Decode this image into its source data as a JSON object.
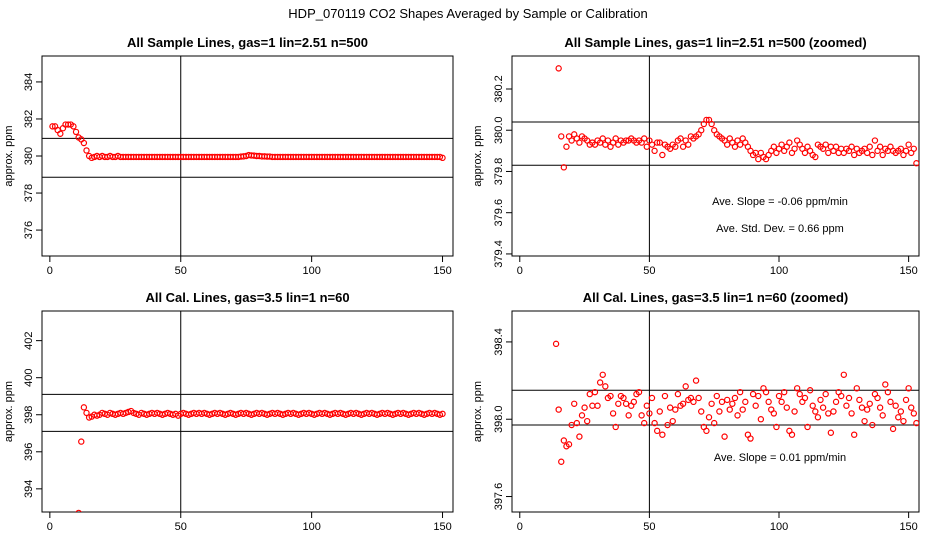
{
  "page_title": "HDP_070119  CO2 Shapes Averaged by Sample or Calibration",
  "chart_data": [
    {
      "type": "scatter",
      "title": "All Sample Lines, gas=1 lin=2.51 n=500",
      "xlabel": "",
      "ylabel": "approx. ppm",
      "xlim": [
        -3,
        154
      ],
      "ylim": [
        374.6,
        385.4
      ],
      "x_ticks": [
        0,
        50,
        100,
        150
      ],
      "x_tick_labels": [
        "0",
        "50",
        "100",
        "150"
      ],
      "y_ticks": [
        376,
        378,
        380,
        382,
        384
      ],
      "y_tick_labels": [
        "376",
        "378",
        "380",
        "382",
        "384"
      ],
      "vline": [
        50
      ],
      "hlines": [
        378.85,
        380.95
      ],
      "marker_color": "#ff0000",
      "annotations": [],
      "points": {
        "x_start": 1,
        "x_step": 1,
        "y": [
          381.6,
          381.6,
          381.4,
          381.2,
          381.5,
          381.7,
          381.7,
          381.7,
          381.6,
          381.3,
          381.0,
          380.9,
          380.7,
          380.3,
          380.0,
          379.9,
          379.95,
          380.0,
          379.95,
          380.0,
          379.95,
          379.95,
          380.0,
          379.95,
          379.95,
          380.0,
          379.95,
          379.95,
          379.95,
          379.95,
          379.95,
          379.95,
          379.95,
          379.95,
          379.95,
          379.95,
          379.95,
          379.95,
          379.95,
          379.95,
          379.95,
          379.95,
          379.95,
          379.95,
          379.95,
          379.95,
          379.95,
          379.95,
          379.95,
          379.95,
          379.95,
          379.95,
          379.95,
          379.95,
          379.95,
          379.95,
          379.95,
          379.95,
          379.95,
          379.95,
          379.95,
          379.95,
          379.95,
          379.95,
          379.95,
          379.95,
          379.95,
          379.95,
          379.95,
          379.95,
          379.95,
          379.95,
          379.97,
          379.98,
          380.0,
          380.05,
          380.03,
          380.02,
          380.0,
          380.0,
          379.98,
          379.98,
          379.97,
          379.97,
          379.95,
          379.95,
          379.95,
          379.95,
          379.95,
          379.95,
          379.95,
          379.95,
          379.95,
          379.95,
          379.95,
          379.95,
          379.95,
          379.95,
          379.95,
          379.95,
          379.95,
          379.95,
          379.95,
          379.95,
          379.95,
          379.95,
          379.95,
          379.95,
          379.95,
          379.95,
          379.95,
          379.95,
          379.95,
          379.95,
          379.95,
          379.95,
          379.95,
          379.95,
          379.95,
          379.95,
          379.95,
          379.95,
          379.95,
          379.95,
          379.95,
          379.95,
          379.95,
          379.95,
          379.95,
          379.95,
          379.95,
          379.95,
          379.95,
          379.95,
          379.95,
          379.95,
          379.95,
          379.95,
          379.95,
          379.95,
          379.95,
          379.95,
          379.95,
          379.95,
          379.95,
          379.95,
          379.95,
          379.95,
          379.95,
          379.9
        ]
      }
    },
    {
      "type": "scatter",
      "title": "All Sample Lines, gas=1 lin=2.51 n=500 (zoomed)",
      "xlabel": "",
      "ylabel": "approx. ppm",
      "xlim": [
        -3,
        154
      ],
      "ylim": [
        379.39,
        380.36
      ],
      "x_ticks": [
        0,
        50,
        100,
        150
      ],
      "x_tick_labels": [
        "0",
        "50",
        "100",
        "150"
      ],
      "y_ticks": [
        379.4,
        379.6,
        379.8,
        380.0,
        380.2
      ],
      "y_tick_labels": [
        "379.4",
        "379.6",
        "379.8",
        "380.0",
        "380.2"
      ],
      "vline": [
        50
      ],
      "hlines": [
        379.83,
        380.04
      ],
      "marker_color": "#ff0000",
      "annotations": [
        "Ave. Slope =  -0.06  ppm/min",
        "Ave. Std. Dev. =  0.66  ppm"
      ],
      "points": {
        "x_start": 15,
        "x_step": 1,
        "y": [
          380.3,
          379.97,
          379.82,
          379.92,
          379.97,
          379.95,
          379.98,
          379.96,
          379.94,
          379.97,
          379.96,
          379.95,
          379.93,
          379.94,
          379.93,
          379.95,
          379.94,
          379.96,
          379.93,
          379.95,
          379.92,
          379.94,
          379.96,
          379.93,
          379.95,
          379.94,
          379.95,
          379.95,
          379.96,
          379.95,
          379.94,
          379.95,
          379.94,
          379.96,
          379.92,
          379.95,
          379.93,
          379.9,
          379.94,
          379.94,
          379.88,
          379.93,
          379.92,
          379.91,
          379.93,
          379.92,
          379.95,
          379.96,
          379.92,
          379.95,
          379.93,
          379.97,
          379.96,
          379.97,
          379.98,
          380.0,
          380.03,
          380.05,
          380.05,
          380.03,
          380.0,
          379.98,
          379.97,
          379.96,
          379.95,
          379.93,
          379.96,
          379.94,
          379.92,
          379.95,
          379.93,
          379.96,
          379.94,
          379.92,
          379.9,
          379.88,
          379.89,
          379.86,
          379.89,
          379.87,
          379.86,
          379.88,
          379.9,
          379.92,
          379.89,
          379.91,
          379.93,
          379.9,
          379.92,
          379.94,
          379.89,
          379.91,
          379.95,
          379.93,
          379.91,
          379.89,
          379.92,
          379.9,
          379.88,
          379.87,
          379.93,
          379.92,
          379.91,
          379.93,
          379.89,
          379.92,
          379.9,
          379.92,
          379.89,
          379.91,
          379.89,
          379.91,
          379.9,
          379.92,
          379.88,
          379.91,
          379.89,
          379.9,
          379.91,
          379.89,
          379.92,
          379.88,
          379.95,
          379.9,
          379.92,
          379.88,
          379.91,
          379.9,
          379.92,
          379.9,
          379.89,
          379.9,
          379.91,
          379.88,
          379.9,
          379.93,
          379.89,
          379.91,
          379.84
        ]
      }
    },
    {
      "type": "scatter",
      "title": "All Cal. Lines, gas=3.5 lin=1 n=60",
      "xlabel": "",
      "ylabel": "approx. ppm",
      "xlim": [
        -3,
        154
      ],
      "ylim": [
        392.75,
        403.6
      ],
      "x_ticks": [
        0,
        50,
        100,
        150
      ],
      "x_tick_labels": [
        "0",
        "50",
        "100",
        "150"
      ],
      "y_ticks": [
        394,
        396,
        398,
        400,
        402
      ],
      "y_tick_labels": [
        "394",
        "396",
        "398",
        "400",
        "402"
      ],
      "vline": [
        50
      ],
      "hlines": [
        397.1,
        399.1
      ],
      "marker_color": "#ff0000",
      "annotations": [],
      "points": {
        "x_start": 11,
        "x_step": 1,
        "y": [
          392.7,
          396.55,
          398.4,
          398.1,
          397.85,
          397.9,
          398.0,
          397.95,
          398.0,
          398.1,
          398.05,
          398.0,
          398.1,
          398.05,
          398.0,
          398.05,
          398.1,
          398.05,
          398.1,
          398.15,
          398.2,
          398.1,
          398.05,
          398.0,
          398.1,
          398.05,
          398.0,
          398.05,
          398.1,
          398.05,
          398.1,
          398.05,
          398.0,
          398.05,
          398.1,
          398.05,
          398.0,
          398.05,
          397.95,
          398.05,
          398.1,
          398.05,
          398.0,
          398.05,
          398.1,
          398.05,
          398.1,
          398.05,
          398.1,
          398.05,
          398.0,
          398.05,
          398.1,
          398.05,
          398.1,
          398.05,
          398.0,
          398.05,
          398.1,
          398.05,
          398.0,
          398.05,
          398.1,
          398.05,
          398.1,
          398.05,
          398.0,
          398.05,
          398.1,
          398.05,
          398.1,
          398.05,
          398.0,
          398.05,
          398.1,
          398.05,
          398.1,
          398.05,
          398.0,
          398.05,
          398.1,
          398.05,
          398.1,
          398.05,
          398.0,
          398.05,
          398.1,
          398.05,
          398.1,
          398.05,
          398.0,
          398.05,
          398.1,
          398.05,
          398.1,
          398.05,
          398.0,
          398.05,
          398.1,
          398.05,
          398.1,
          398.05,
          398.0,
          398.05,
          398.1,
          398.05,
          398.1,
          398.05,
          398.0,
          398.05,
          398.1,
          398.05,
          398.1,
          398.05,
          398.0,
          398.05,
          398.1,
          398.05,
          398.1,
          398.05,
          398.0,
          398.05,
          398.1,
          398.05,
          398.1,
          398.05,
          398.0,
          398.05,
          398.1,
          398.05,
          398.1,
          398.05,
          398.0,
          398.05,
          398.1,
          398.05,
          398.1,
          398.05,
          398.0,
          398.05
        ]
      }
    },
    {
      "type": "scatter",
      "title": "All Cal. Lines, gas=3.5 lin=1 n=60 (zoomed)",
      "xlabel": "",
      "ylabel": "approx. ppm",
      "xlim": [
        -3,
        154
      ],
      "ylim": [
        397.52,
        398.56
      ],
      "x_ticks": [
        0,
        50,
        100,
        150
      ],
      "x_tick_labels": [
        "0",
        "50",
        "100",
        "150"
      ],
      "y_ticks": [
        397.6,
        398.0,
        398.4
      ],
      "y_tick_labels": [
        "397.6",
        "398.0",
        "398.4"
      ],
      "vline": [
        50
      ],
      "hlines": [
        397.97,
        398.15
      ],
      "marker_color": "#ff0000",
      "annotations": [
        "Ave. Slope =  0.01  ppm/min"
      ],
      "points": {
        "x_start": 14,
        "x_step": 1,
        "y": [
          398.39,
          398.05,
          397.78,
          397.89,
          397.86,
          397.87,
          397.97,
          398.08,
          397.98,
          397.91,
          398.02,
          398.06,
          397.99,
          398.13,
          398.07,
          398.14,
          398.07,
          398.19,
          398.23,
          398.17,
          398.11,
          398.12,
          398.03,
          397.96,
          398.08,
          398.12,
          398.11,
          398.08,
          398.02,
          398.07,
          398.09,
          398.13,
          398.14,
          398.02,
          397.98,
          398.07,
          398.03,
          398.11,
          397.98,
          397.94,
          398.04,
          397.92,
          398.12,
          397.97,
          398.06,
          397.99,
          398.05,
          398.13,
          398.07,
          398.08,
          398.17,
          398.1,
          398.11,
          398.09,
          398.2,
          398.11,
          398.04,
          397.96,
          397.94,
          398.01,
          398.08,
          397.98,
          398.12,
          398.04,
          398.09,
          397.91,
          398.1,
          398.05,
          398.08,
          398.11,
          398.02,
          398.14,
          398.05,
          398.09,
          397.92,
          397.9,
          398.13,
          398.07,
          398.12,
          398.0,
          398.16,
          398.14,
          398.09,
          398.05,
          398.03,
          397.96,
          398.12,
          398.09,
          398.14,
          398.06,
          397.94,
          397.92,
          398.04,
          398.16,
          398.13,
          398.09,
          398.11,
          397.96,
          398.15,
          398.07,
          398.04,
          398.01,
          398.1,
          398.06,
          398.13,
          398.03,
          397.93,
          398.04,
          398.09,
          398.14,
          398.12,
          398.23,
          398.07,
          398.11,
          398.03,
          397.92,
          398.16,
          398.1,
          398.06,
          397.99,
          398.05,
          398.08,
          397.97,
          398.13,
          398.11,
          398.06,
          398.02,
          398.18,
          398.14,
          398.09,
          397.95,
          398.07,
          398.01,
          398.04,
          397.99,
          398.1,
          398.16,
          398.06,
          398.03,
          397.98
        ]
      }
    }
  ]
}
